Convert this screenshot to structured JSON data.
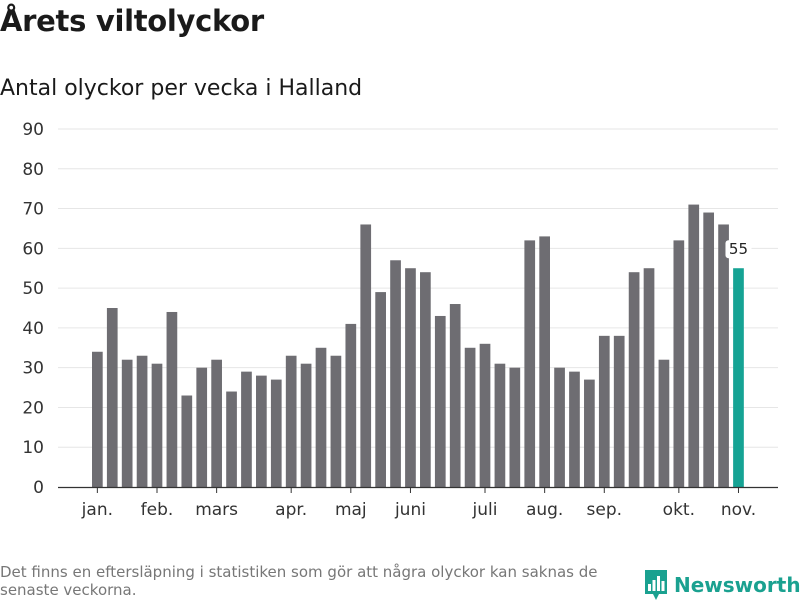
{
  "title": "Årets viltolyckor",
  "subtitle": "Antal olyckor per vecka i Halland",
  "footnote": "Det finns en eftersläpning i statistiken som gör att några olyckor kan saknas de senaste veckorna.",
  "brand": "Newsworthy",
  "colors": {
    "bar": "#6e6d72",
    "highlight": "#16a394",
    "grid": "#e6e6e6",
    "axis": "#333333",
    "brand": "#1aa190"
  },
  "chart_data": {
    "type": "bar",
    "title": "Årets viltolyckor",
    "subtitle": "Antal olyckor per vecka i Halland",
    "xlabel": "",
    "ylabel": "",
    "ylim": [
      0,
      90
    ],
    "yticks": [
      0,
      10,
      20,
      30,
      40,
      50,
      60,
      70,
      80,
      90
    ],
    "weeks": [
      1,
      2,
      3,
      4,
      5,
      6,
      7,
      8,
      9,
      10,
      11,
      12,
      13,
      14,
      15,
      16,
      17,
      18,
      19,
      20,
      21,
      22,
      23,
      24,
      25,
      26,
      27,
      28,
      29,
      30,
      31,
      32,
      33,
      34,
      35,
      36,
      37,
      38,
      39,
      40,
      41,
      42,
      43,
      44
    ],
    "values": [
      34,
      45,
      32,
      33,
      31,
      44,
      23,
      30,
      32,
      24,
      29,
      28,
      27,
      33,
      31,
      35,
      33,
      41,
      66,
      49,
      57,
      55,
      54,
      43,
      46,
      35,
      36,
      31,
      30,
      62,
      63,
      30,
      29,
      27,
      38,
      38,
      54,
      55,
      32,
      62,
      71,
      69,
      66,
      55
    ],
    "highlight_index": 43,
    "highlight_label": "55",
    "month_labels": [
      {
        "label": "jan.",
        "week": 1
      },
      {
        "label": "feb.",
        "week": 5
      },
      {
        "label": "mars",
        "week": 9
      },
      {
        "label": "apr.",
        "week": 14
      },
      {
        "label": "maj",
        "week": 18
      },
      {
        "label": "juni",
        "week": 22
      },
      {
        "label": "juli",
        "week": 27
      },
      {
        "label": "aug.",
        "week": 31
      },
      {
        "label": "sep.",
        "week": 35
      },
      {
        "label": "okt.",
        "week": 40
      },
      {
        "label": "nov.",
        "week": 44
      }
    ],
    "grid": true
  }
}
